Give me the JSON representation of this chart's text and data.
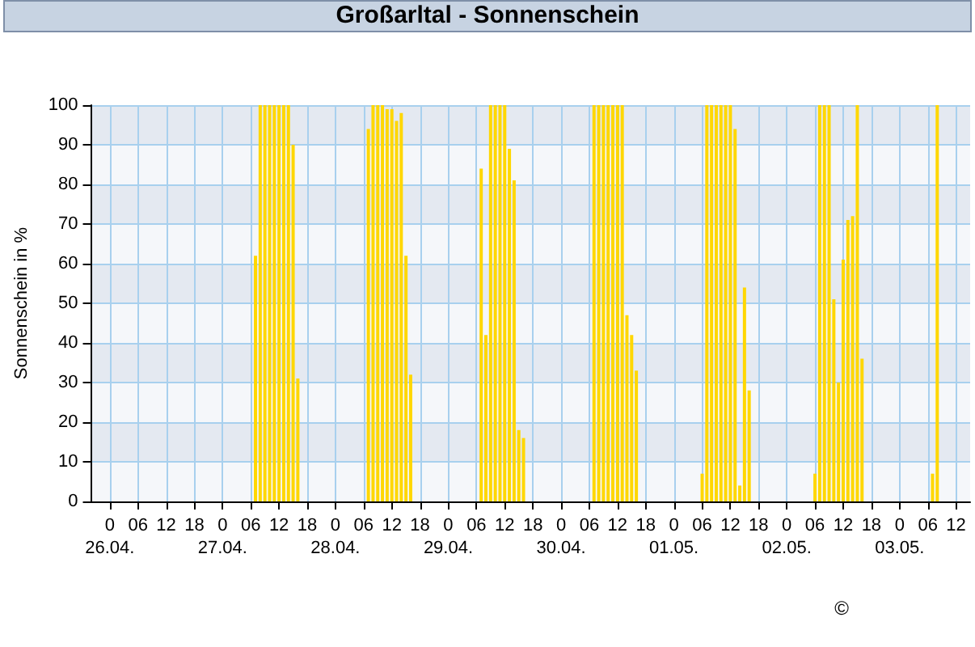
{
  "chart_data": {
    "type": "bar",
    "title": "Großarltal - Sonnenschein",
    "ylabel": "Sonnenschein in %",
    "color": "#ffd700",
    "x": [
      "--04-27T07:00",
      "--04-27T08:00",
      "--04-27T09:00",
      "--04-27T10:00",
      "--04-27T11:00",
      "--04-27T12:00",
      "--04-27T13:00",
      "--04-27T14:00",
      "--04-27T15:00",
      "--04-27T16:00",
      "--04-28T07:00",
      "--04-28T08:00",
      "--04-28T09:00",
      "--04-28T10:00",
      "--04-28T11:00",
      "--04-28T12:00",
      "--04-28T13:00",
      "--04-28T14:00",
      "--04-28T15:00",
      "--04-28T16:00",
      "--04-29T07:00",
      "--04-29T08:00",
      "--04-29T09:00",
      "--04-29T10:00",
      "--04-29T11:00",
      "--04-29T12:00",
      "--04-29T13:00",
      "--04-29T14:00",
      "--04-29T15:00",
      "--04-29T16:00",
      "--04-30T07:00",
      "--04-30T08:00",
      "--04-30T09:00",
      "--04-30T10:00",
      "--04-30T11:00",
      "--04-30T12:00",
      "--04-30T13:00",
      "--04-30T14:00",
      "--04-30T15:00",
      "--04-30T16:00",
      "--05-01T06:00",
      "--05-01T07:00",
      "--05-01T08:00",
      "--05-01T09:00",
      "--05-01T10:00",
      "--05-01T11:00",
      "--05-01T12:00",
      "--05-01T13:00",
      "--05-01T14:00",
      "--05-01T15:00",
      "--05-01T16:00",
      "--05-02T06:00",
      "--05-02T07:00",
      "--05-02T08:00",
      "--05-02T09:00",
      "--05-02T10:00",
      "--05-02T11:00",
      "--05-02T12:00",
      "--05-02T13:00",
      "--05-02T14:00",
      "--05-02T15:00",
      "--05-02T16:00",
      "--05-03T07:00",
      "--05-03T08:00"
    ],
    "values": [
      62,
      100,
      100,
      100,
      100,
      100,
      100,
      100,
      90,
      31,
      94,
      100,
      100,
      100,
      99,
      99,
      96,
      98,
      62,
      32,
      84,
      42,
      100,
      100,
      100,
      100,
      89,
      81,
      18,
      16,
      100,
      100,
      100,
      100,
      100,
      100,
      100,
      47,
      42,
      33,
      7,
      100,
      100,
      100,
      100,
      100,
      100,
      94,
      4,
      54,
      28,
      7,
      100,
      100,
      100,
      51,
      30,
      61,
      71,
      72,
      100,
      36,
      7,
      100
    ],
    "xlim": [
      "--04-25T20:00",
      "--05-03T15:00"
    ],
    "ylim": [
      0,
      100
    ],
    "xticks": [
      {
        "value": "--04-26T00:00",
        "label": "0\n26.04."
      },
      {
        "value": "--04-26T06:00",
        "label": "06"
      },
      {
        "value": "--04-26T12:00",
        "label": "12"
      },
      {
        "value": "--04-26T18:00",
        "label": "18"
      },
      {
        "value": "--04-27T00:00",
        "label": "0\n27.04."
      },
      {
        "value": "--04-27T06:00",
        "label": "06"
      },
      {
        "value": "--04-27T12:00",
        "label": "12"
      },
      {
        "value": "--04-27T18:00",
        "label": "18"
      },
      {
        "value": "--04-28T00:00",
        "label": "0\n28.04."
      },
      {
        "value": "--04-28T06:00",
        "label": "06"
      },
      {
        "value": "--04-28T12:00",
        "label": "12"
      },
      {
        "value": "--04-28T18:00",
        "label": "18"
      },
      {
        "value": "--04-29T00:00",
        "label": "0\n29.04."
      },
      {
        "value": "--04-29T06:00",
        "label": "06"
      },
      {
        "value": "--04-29T12:00",
        "label": "12"
      },
      {
        "value": "--04-29T18:00",
        "label": "18"
      },
      {
        "value": "--04-30T00:00",
        "label": "0\n30.04."
      },
      {
        "value": "--04-30T06:00",
        "label": "06"
      },
      {
        "value": "--04-30T12:00",
        "label": "12"
      },
      {
        "value": "--04-30T18:00",
        "label": "18"
      },
      {
        "value": "--05-01T00:00",
        "label": "0\n01.05."
      },
      {
        "value": "--05-01T06:00",
        "label": "06"
      },
      {
        "value": "--05-01T12:00",
        "label": "12"
      },
      {
        "value": "--05-01T18:00",
        "label": "18"
      },
      {
        "value": "--05-02T00:00",
        "label": "0\n02.05."
      },
      {
        "value": "--05-02T06:00",
        "label": "06"
      },
      {
        "value": "--05-02T12:00",
        "label": "12"
      },
      {
        "value": "--05-02T18:00",
        "label": "18"
      },
      {
        "value": "--05-03T00:00",
        "label": "0\n03.05."
      },
      {
        "value": "--05-03T06:00",
        "label": "06"
      },
      {
        "value": "--05-03T12:00",
        "label": "12"
      }
    ],
    "yticks": [
      0,
      10,
      20,
      30,
      40,
      50,
      60,
      70,
      80,
      90,
      100
    ],
    "grid": true,
    "annotations": [
      "©"
    ]
  }
}
